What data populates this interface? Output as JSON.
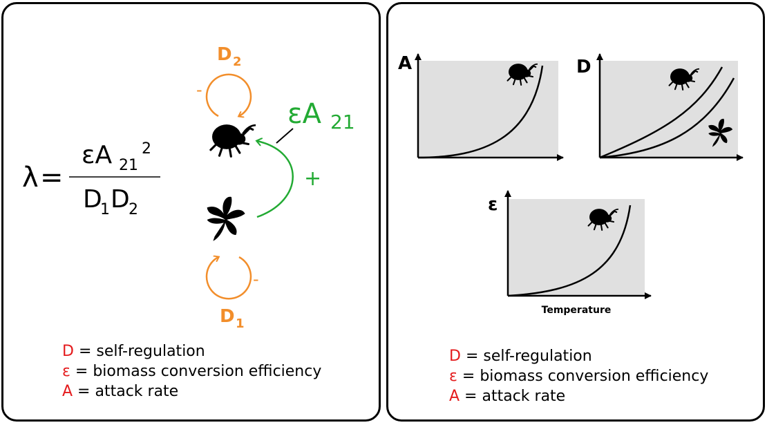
{
  "left": {
    "formula": {
      "lambda": "λ",
      "equals": "=",
      "numerator_symbol": "εA",
      "numerator_subscript": "21",
      "numerator_power": "2",
      "denominator_d1": "D",
      "denominator_sub1": "1",
      "denominator_d2": "D",
      "denominator_sub2": "2"
    },
    "diagram": {
      "d2_label": "D",
      "d2_sub": "2",
      "d2_sign": "-",
      "d1_label": "D",
      "d1_sub": "1",
      "d1_sign": "-",
      "interaction_label": "εA",
      "interaction_sub": "21",
      "interaction_sign": "+",
      "colors": {
        "self_regulation": "#f28e2b",
        "interaction": "#22aa33"
      }
    },
    "legend": [
      {
        "symbol": "D",
        "text": " = self-regulation"
      },
      {
        "symbol": "ε",
        "text": " =  biomass conversion efficiency"
      },
      {
        "symbol": "A",
        "text": " = attack rate"
      }
    ]
  },
  "right": {
    "plots": [
      {
        "label": "A",
        "curves": 1,
        "icons": [
          "beetle-icon"
        ]
      },
      {
        "label": "D",
        "curves": 2,
        "icons": [
          "beetle-icon",
          "plant-icon"
        ]
      },
      {
        "label": "ε",
        "curves": 1,
        "icons": [
          "beetle-icon"
        ]
      }
    ],
    "xlabel": "Temperature",
    "legend": [
      {
        "symbol": "D",
        "text": " = self-regulation"
      },
      {
        "symbol": "ε",
        "text": " =  biomass conversion efficiency"
      },
      {
        "symbol": "A",
        "text": " = attack rate"
      }
    ]
  }
}
